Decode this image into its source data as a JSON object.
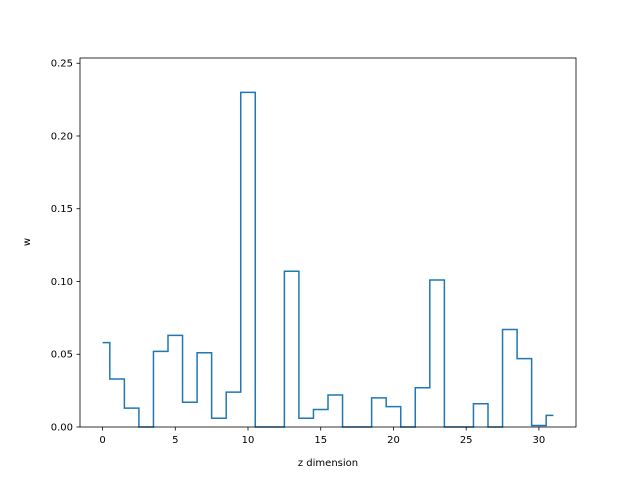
{
  "chart_data": {
    "type": "line",
    "drawstyle": "steps-mid",
    "xlabel": "z dimension",
    "ylabel": "w",
    "xlim": [
      -1.55,
      32.55
    ],
    "ylim": [
      0.0,
      0.2536
    ],
    "xticks": [
      0,
      5,
      10,
      15,
      20,
      25,
      30
    ],
    "yticks": [
      0.0,
      0.05,
      0.1,
      0.15,
      0.2,
      0.25
    ],
    "ytick_labels": [
      "0.00",
      "0.05",
      "0.10",
      "0.15",
      "0.20",
      "0.25"
    ],
    "grid": false,
    "series": [
      {
        "color": "#1f77b4",
        "x": [
          0,
          1,
          2,
          3,
          4,
          5,
          6,
          7,
          8,
          9,
          10,
          11,
          12,
          13,
          14,
          15,
          16,
          17,
          18,
          19,
          20,
          21,
          22,
          23,
          24,
          25,
          26,
          27,
          28,
          29,
          30,
          31
        ],
        "values": [
          0.058,
          0.033,
          0.013,
          0.0,
          0.052,
          0.063,
          0.017,
          0.051,
          0.006,
          0.024,
          0.23,
          0.0,
          0.0,
          0.107,
          0.006,
          0.012,
          0.022,
          0.0,
          0.0,
          0.02,
          0.014,
          0.0,
          0.027,
          0.101,
          0.0,
          0.0,
          0.016,
          0.0,
          0.067,
          0.047,
          0.001,
          0.008
        ]
      }
    ]
  }
}
